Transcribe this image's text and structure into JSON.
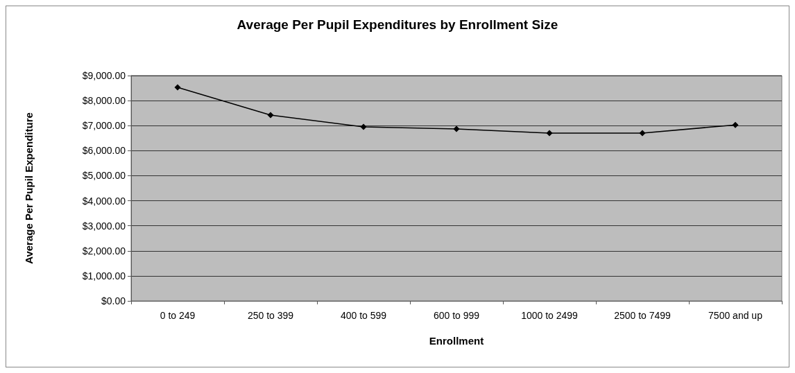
{
  "chart_data": {
    "type": "line",
    "title": "Average Per Pupil Expenditures by Enrollment Size",
    "xlabel": "Enrollment",
    "ylabel": "Average Per Pupil Expenditure",
    "categories": [
      "0 to 249",
      "250 to 399",
      "400 to 599",
      "600 to 999",
      "1000 to 2499",
      "2500 to 7499",
      "7500 and up"
    ],
    "series": [
      {
        "color": "#000000",
        "values": [
          8530,
          7420,
          6950,
          6870,
          6700,
          6700,
          7030
        ]
      }
    ],
    "ylim": [
      0,
      9000
    ],
    "yticks": [
      {
        "value": 0,
        "label": "$0.00"
      },
      {
        "value": 1000,
        "label": "$1,000.00"
      },
      {
        "value": 2000,
        "label": "$2,000.00"
      },
      {
        "value": 3000,
        "label": "$3,000.00"
      },
      {
        "value": 4000,
        "label": "$4,000.00"
      },
      {
        "value": 5000,
        "label": "$5,000.00"
      },
      {
        "value": 6000,
        "label": "$6,000.00"
      },
      {
        "value": 7000,
        "label": "$7,000.00"
      },
      {
        "value": 8000,
        "label": "$8,000.00"
      },
      {
        "value": 9000,
        "label": "$9,000.00"
      }
    ],
    "grid": "y",
    "marker": "diamond",
    "line_style": "solid"
  }
}
